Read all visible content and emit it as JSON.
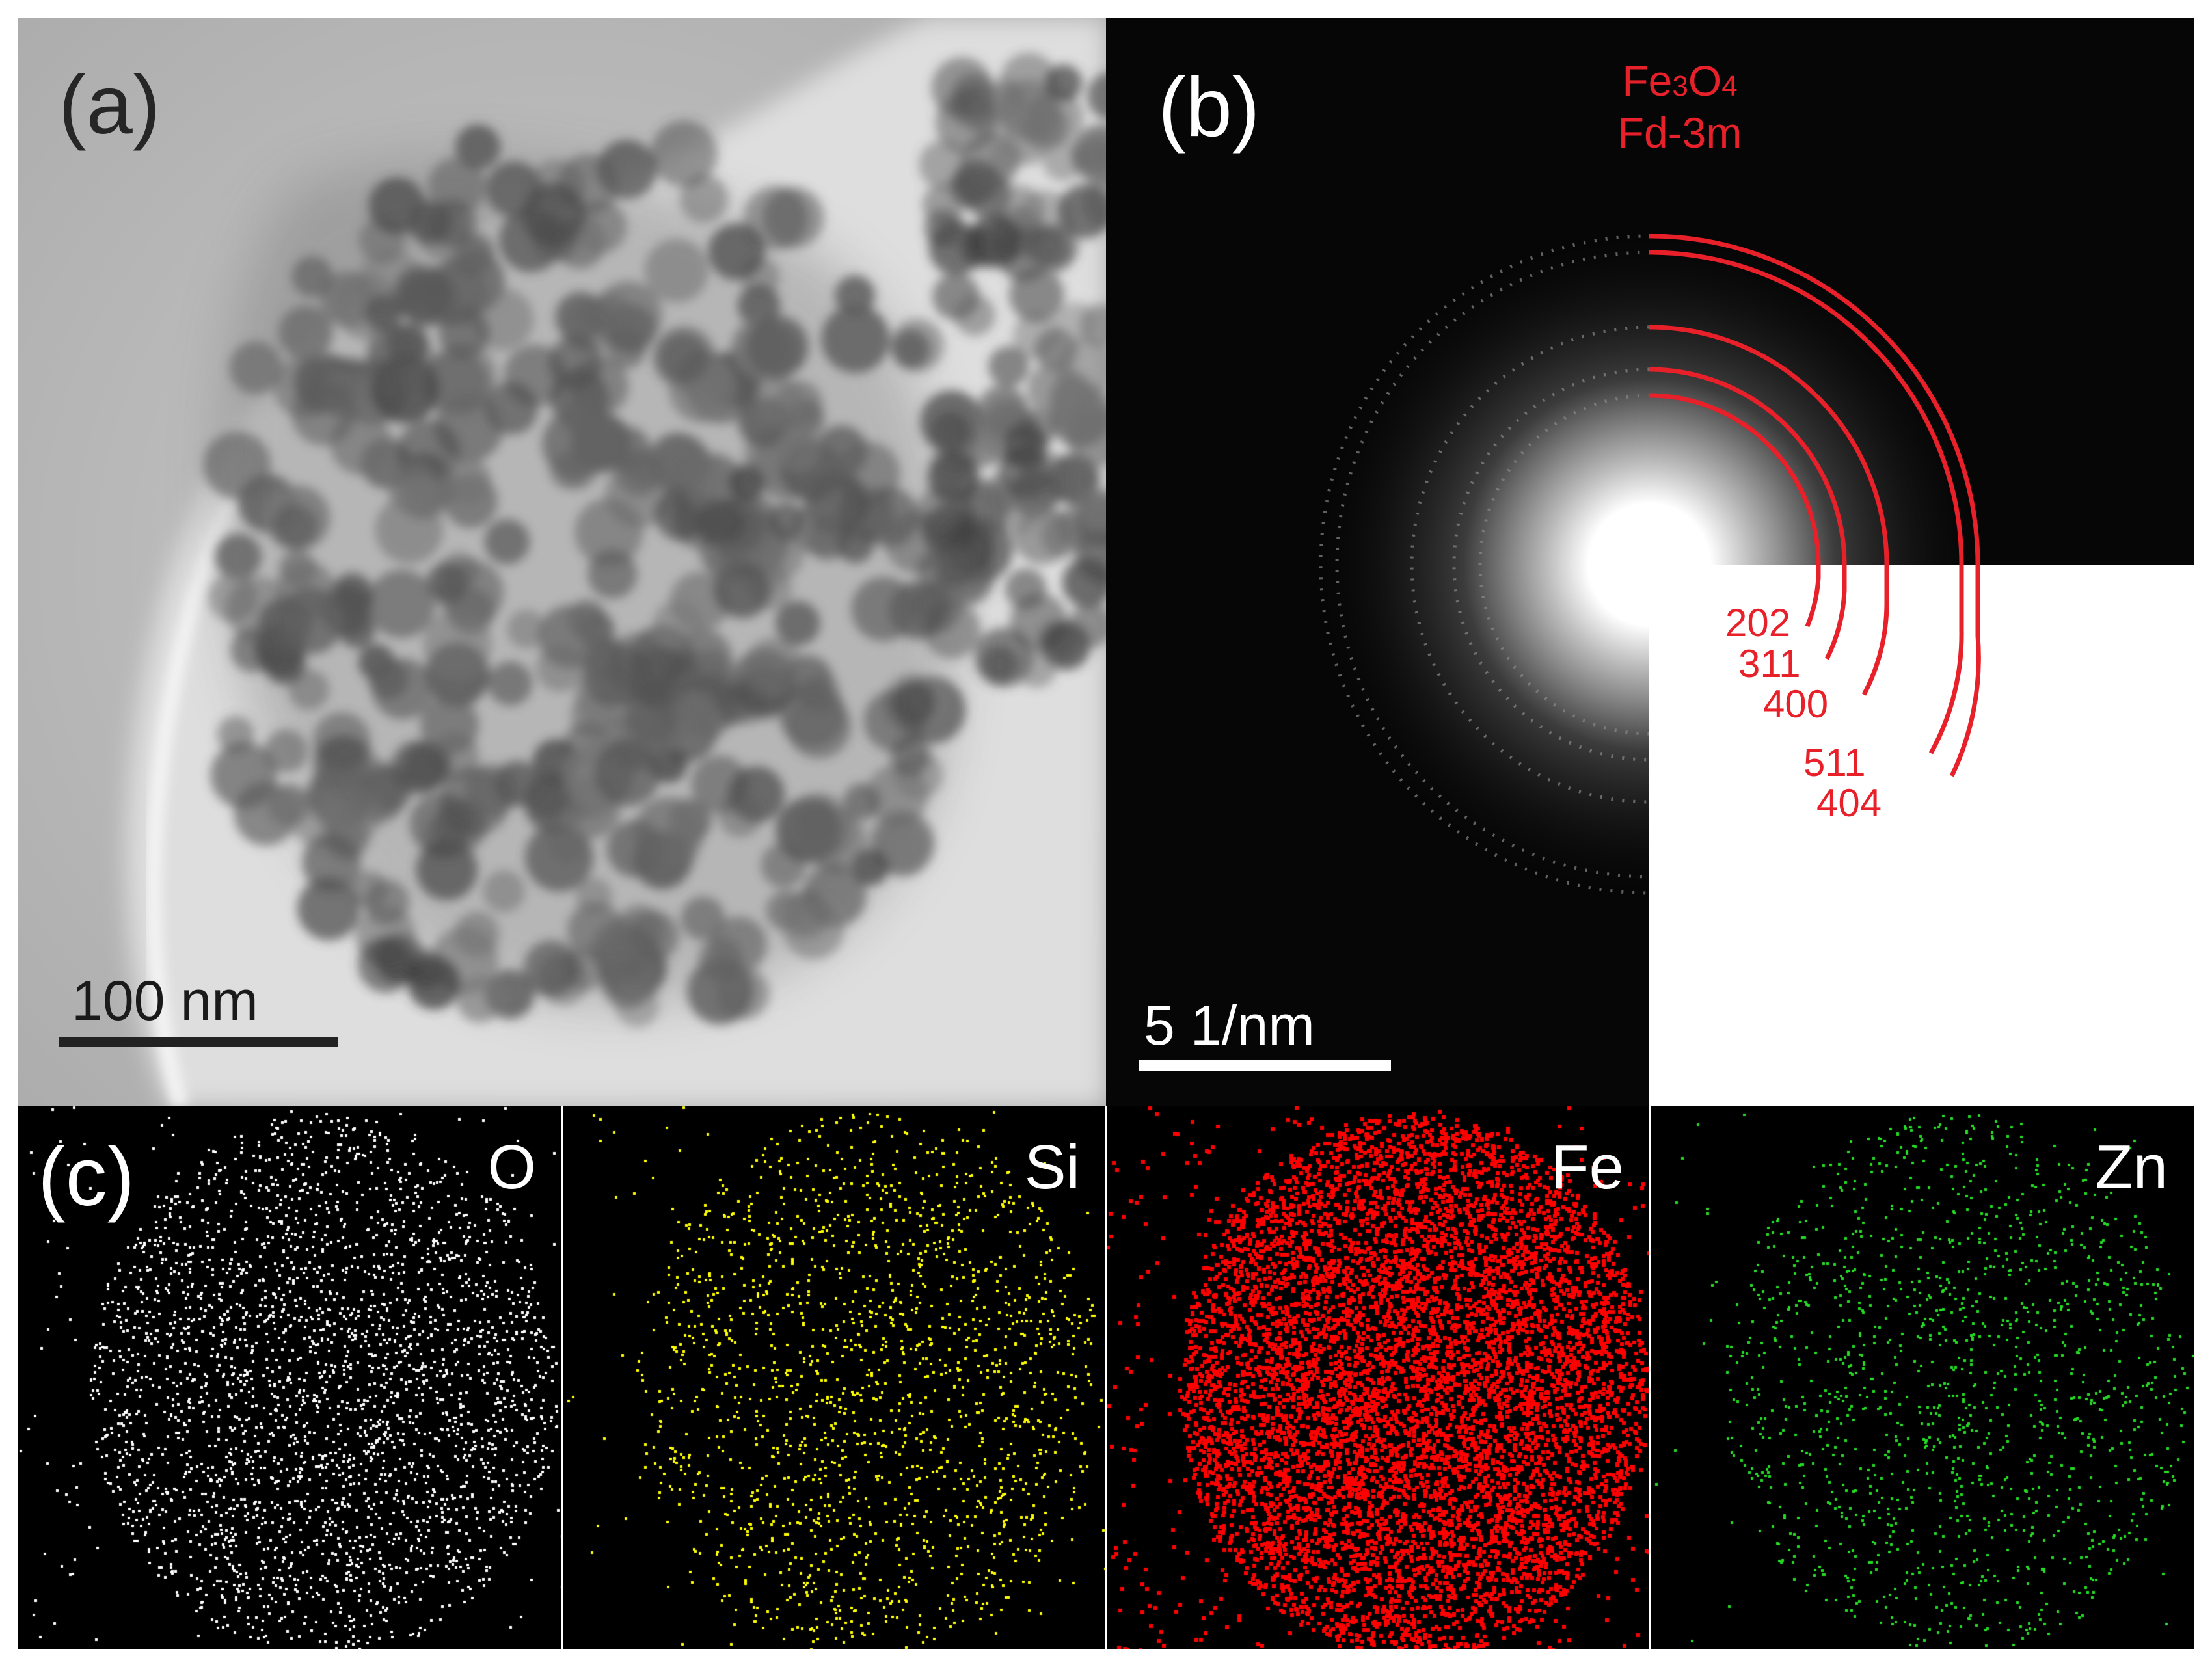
{
  "panels": {
    "a": {
      "label": "(a)",
      "scale_bar": "100 nm"
    },
    "b": {
      "label": "(b)",
      "phase": "Fe",
      "phase_sub3": "3",
      "phase_o": "O",
      "phase_sub4": "4",
      "space_group": "Fd-3m",
      "rings": [
        "202",
        "311",
        "400",
        "511",
        "404"
      ],
      "scale_bar": "5 1/nm"
    },
    "c": {
      "label": "(c)",
      "maps": [
        {
          "element": "O",
          "color": "#ffffff"
        },
        {
          "element": "Si",
          "color": "#ffff00"
        },
        {
          "element": "Fe",
          "color": "#ff0000"
        },
        {
          "element": "Zn",
          "color": "#22dd22"
        }
      ]
    }
  },
  "colors": {
    "annotation": "#e8202a"
  }
}
